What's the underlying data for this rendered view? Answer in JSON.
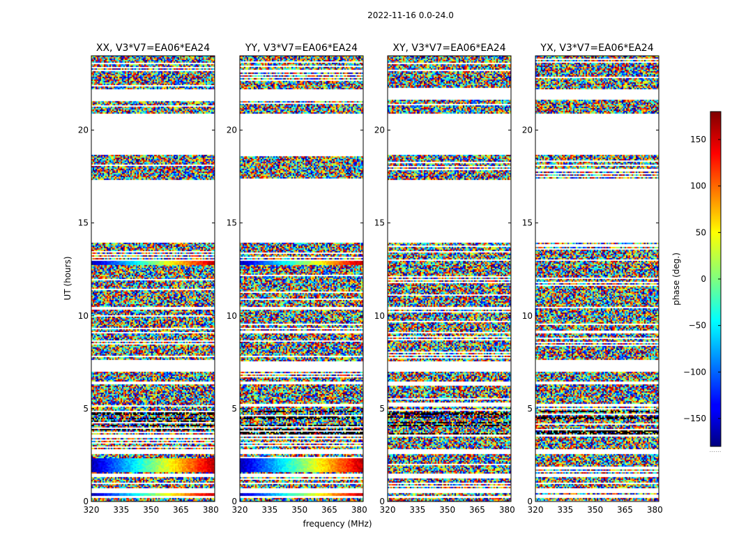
{
  "chart_data": {
    "type": "heatmap",
    "suptitle": "2022-11-16 0.0-24.0",
    "xlabel": "frequency (MHz)",
    "ylabel": "UT (hours)",
    "xlim": [
      320,
      382
    ],
    "ylim": [
      0,
      24
    ],
    "xticks": [
      320,
      335,
      350,
      365,
      380
    ],
    "yticks": [
      0,
      5,
      10,
      15,
      20
    ],
    "panels": [
      {
        "title": "XX, V3*V7=EA06*EA24",
        "polarization": "XX"
      },
      {
        "title": "YY, V3*V7=EA06*EA24",
        "polarization": "YY"
      },
      {
        "title": "XY, V3*V7=EA06*EA24",
        "polarization": "XY"
      },
      {
        "title": "YX, V3*V7=EA06*EA24",
        "polarization": "YX"
      }
    ],
    "data_coverage_ut_hours": [
      [
        0.0,
        0.2
      ],
      [
        0.3,
        0.45
      ],
      [
        0.7,
        0.95
      ],
      [
        1.05,
        1.3
      ],
      [
        1.5,
        2.55
      ],
      [
        2.8,
        3.5
      ],
      [
        3.6,
        5.1
      ],
      [
        5.2,
        6.3
      ],
      [
        6.45,
        7.0
      ],
      [
        7.6,
        9.05
      ],
      [
        9.15,
        10.4
      ],
      [
        10.5,
        12.95
      ],
      [
        13.05,
        13.95
      ],
      [
        17.3,
        18.65
      ],
      [
        20.9,
        21.65
      ],
      [
        22.2,
        24.0
      ]
    ],
    "coherent_fringe_bands_ut_hours": [
      [
        10.35,
        10.55
      ],
      [
        12.8,
        13.0
      ],
      [
        0.35,
        0.5
      ],
      [
        1.6,
        2.4
      ]
    ],
    "colorbar": {
      "label": "phase (deg.)",
      "range": [
        -180,
        180
      ],
      "ticks": [
        -150,
        -100,
        -50,
        0,
        50,
        100,
        150
      ],
      "colormap": "jet"
    }
  }
}
